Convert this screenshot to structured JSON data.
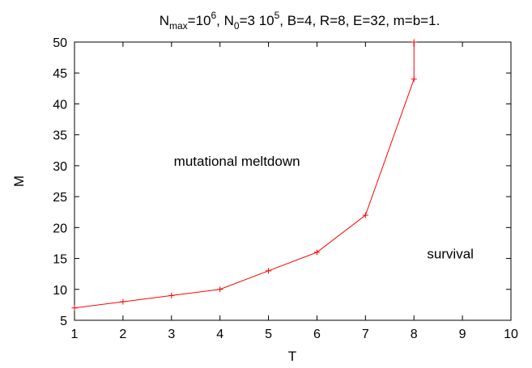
{
  "chart_data": {
    "type": "line",
    "title_parts": {
      "n": "N",
      "max": "max",
      "eq1": "=10",
      "exp6": "6",
      "sep1": ", N",
      "zero": "0",
      "eq2": "=3 10",
      "exp5": "5",
      "rest": ", B=4, R=8, E=32, m=b=1."
    },
    "xlabel": "T",
    "ylabel": "M",
    "xlim": [
      1,
      10
    ],
    "ylim": [
      5,
      50
    ],
    "xticks": [
      1,
      2,
      3,
      4,
      5,
      6,
      7,
      8,
      9,
      10
    ],
    "yticks": [
      5,
      10,
      15,
      20,
      25,
      30,
      35,
      40,
      45,
      50
    ],
    "grid": false,
    "series": [
      {
        "color": "#ff0000",
        "marker": "plus",
        "x": [
          1,
          2,
          3,
          4,
          5,
          6,
          7,
          8,
          8
        ],
        "y": [
          7,
          8,
          9,
          10,
          13,
          16,
          22,
          44,
          50
        ]
      }
    ],
    "annotations": [
      {
        "text": "mutational meltdown",
        "x": 4.35,
        "y": 30
      },
      {
        "text": "survival",
        "x": 8.75,
        "y": 15
      }
    ]
  }
}
